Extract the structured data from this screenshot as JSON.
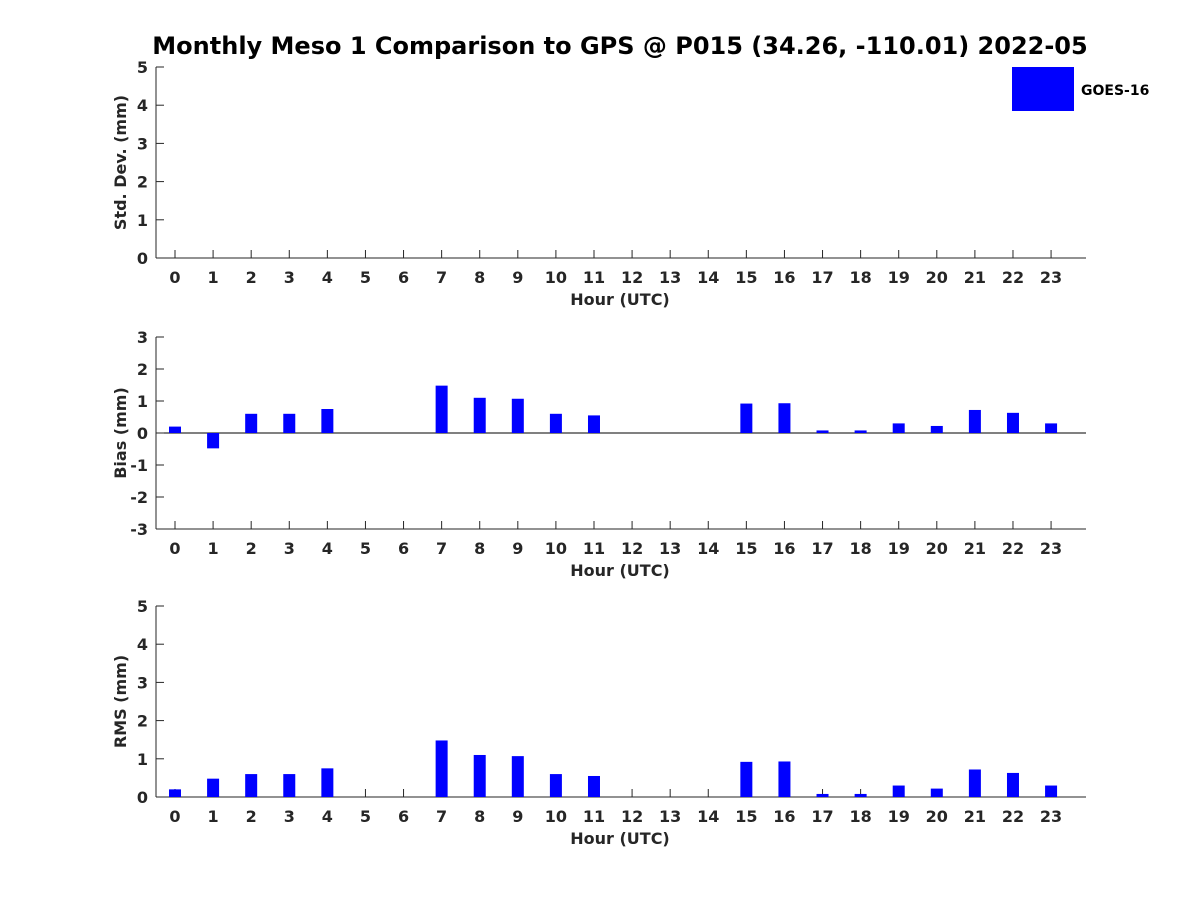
{
  "title": "Monthly Meso 1 Comparison to GPS @ P015 (34.26, -110.01) 2022-05",
  "legend": {
    "label": "GOES-16",
    "color": "#0000ff"
  },
  "chart_data": [
    {
      "type": "bar",
      "ylabel": "Std. Dev. (mm)",
      "xlabel": "Hour (UTC)",
      "ylim": [
        0,
        5
      ],
      "yticks": [
        "0",
        "1",
        "2",
        "3",
        "4",
        "5"
      ],
      "categories": [
        "0",
        "1",
        "2",
        "3",
        "4",
        "5",
        "6",
        "7",
        "8",
        "9",
        "10",
        "11",
        "12",
        "13",
        "14",
        "15",
        "16",
        "17",
        "18",
        "19",
        "20",
        "21",
        "22",
        "23"
      ],
      "series": [
        {
          "name": "GOES-16",
          "values": [
            0,
            0,
            0,
            0,
            0,
            0,
            0,
            0,
            0,
            0,
            0,
            0,
            0,
            0,
            0,
            0,
            0,
            0,
            0,
            0,
            0,
            0,
            0,
            0
          ]
        }
      ]
    },
    {
      "type": "bar",
      "ylabel": "Bias (mm)",
      "xlabel": "Hour (UTC)",
      "ylim": [
        -3,
        3
      ],
      "yticks": [
        "-3",
        "-2",
        "-1",
        "0",
        "1",
        "2",
        "3"
      ],
      "categories": [
        "0",
        "1",
        "2",
        "3",
        "4",
        "5",
        "6",
        "7",
        "8",
        "9",
        "10",
        "11",
        "12",
        "13",
        "14",
        "15",
        "16",
        "17",
        "18",
        "19",
        "20",
        "21",
        "22",
        "23"
      ],
      "series": [
        {
          "name": "GOES-16",
          "values": [
            0.2,
            -0.48,
            0.6,
            0.6,
            0.75,
            0,
            0,
            1.48,
            1.1,
            1.07,
            0.6,
            0.55,
            0,
            0,
            0,
            0.92,
            0.93,
            0.08,
            0.08,
            0.3,
            0.22,
            0.72,
            0.63,
            0.3
          ]
        }
      ]
    },
    {
      "type": "bar",
      "ylabel": "RMS (mm)",
      "xlabel": "Hour (UTC)",
      "ylim": [
        0,
        5
      ],
      "yticks": [
        "0",
        "1",
        "2",
        "3",
        "4",
        "5"
      ],
      "categories": [
        "0",
        "1",
        "2",
        "3",
        "4",
        "5",
        "6",
        "7",
        "8",
        "9",
        "10",
        "11",
        "12",
        "13",
        "14",
        "15",
        "16",
        "17",
        "18",
        "19",
        "20",
        "21",
        "22",
        "23"
      ],
      "series": [
        {
          "name": "GOES-16",
          "values": [
            0.2,
            0.48,
            0.6,
            0.6,
            0.75,
            0,
            0,
            1.48,
            1.1,
            1.07,
            0.6,
            0.55,
            0,
            0,
            0,
            0.92,
            0.93,
            0.08,
            0.08,
            0.3,
            0.22,
            0.72,
            0.63,
            0.3
          ]
        }
      ]
    }
  ]
}
